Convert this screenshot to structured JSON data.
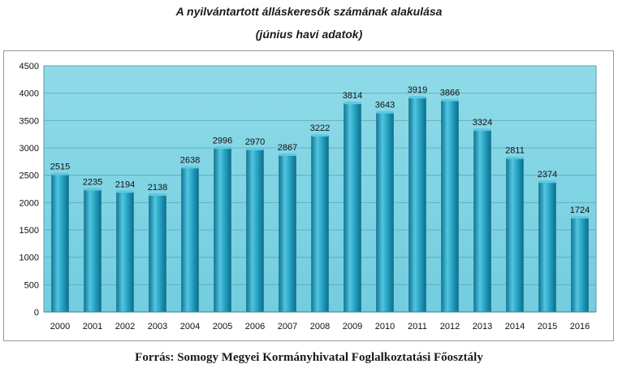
{
  "chart_data": {
    "type": "bar",
    "title": "A nyilvántartott álláskeresők számának alakulása",
    "subtitle": "(június havi adatok)",
    "categories": [
      "2000",
      "2001",
      "2002",
      "2003",
      "2004",
      "2005",
      "2006",
      "2007",
      "2008",
      "2009",
      "2010",
      "2011",
      "2012",
      "2013",
      "2014",
      "2015",
      "2016"
    ],
    "values": [
      2515,
      2235,
      2194,
      2138,
      2638,
      2996,
      2970,
      2867,
      3222,
      3814,
      3643,
      3919,
      3866,
      3324,
      2811,
      2374,
      1724
    ],
    "yticks": [
      0,
      500,
      1000,
      1500,
      2000,
      2500,
      3000,
      3500,
      4000,
      4500
    ],
    "ylim": [
      0,
      4500
    ],
    "grid": true,
    "legend": "none",
    "colors": {
      "plot_bg": "#7fd3e2",
      "bar": "#1e9fc0",
      "bar_light": "#5fc8e0",
      "bar_dark": "#0b6f8e"
    }
  },
  "source": "Forrás: Somogy Megyei Kormányhivatal Foglalkoztatási Főosztály"
}
